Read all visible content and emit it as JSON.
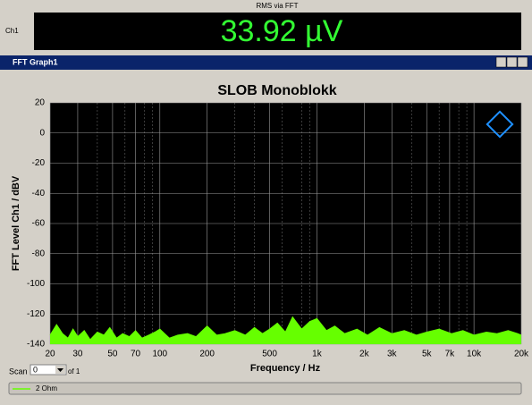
{
  "meter": {
    "title": "RMS via FFT",
    "channel": "Ch1",
    "reading": "33.92 µV"
  },
  "window": {
    "title": "FFT Graph1"
  },
  "scan": {
    "label": "Scan",
    "value": "0",
    "of": "of 1"
  },
  "chart_data": {
    "type": "line",
    "title": "SLOB Monoblokk",
    "x_label": "Frequency / Hz",
    "y_label": "FFT Level Ch1 / dBV",
    "x_log": true,
    "grid": true,
    "fill": true,
    "xlim": [
      20,
      20000
    ],
    "ylim": [
      -140,
      20
    ],
    "yticks": [
      -140,
      -120,
      -100,
      -80,
      -60,
      -40,
      -20,
      0,
      20
    ],
    "xticks": [
      20,
      30,
      50,
      70,
      100,
      200,
      500,
      {
        "value": 1000,
        "label": "1k"
      },
      {
        "value": 2000,
        "label": "2k"
      },
      {
        "value": 3000,
        "label": "3k"
      },
      {
        "value": 5000,
        "label": "5k"
      },
      {
        "value": 7000,
        "label": "7k"
      },
      {
        "value": 10000,
        "label": "10k"
      },
      {
        "value": 20000,
        "label": "20k"
      }
    ],
    "x_minor_ticks": [
      40,
      60,
      80,
      90,
      300,
      400,
      600,
      800,
      900,
      4000,
      6000,
      8000,
      9000
    ],
    "x": [
      20,
      22,
      24,
      26,
      28,
      30,
      33,
      36,
      40,
      44,
      48,
      53,
      58,
      64,
      70,
      77,
      85,
      93,
      100,
      115,
      130,
      150,
      170,
      200,
      230,
      260,
      300,
      350,
      400,
      450,
      500,
      560,
      630,
      700,
      800,
      900,
      1000,
      1150,
      1300,
      1500,
      1800,
      2100,
      2500,
      3000,
      3600,
      4300,
      5000,
      6000,
      7200,
      8500,
      10000,
      12000,
      14000,
      16500,
      19000,
      20000
    ],
    "series": [
      {
        "name": "2 Ohm",
        "color": "#66ff00",
        "values": [
          -134,
          -127,
          -133,
          -136,
          -130,
          -135,
          -131,
          -137,
          -132,
          -134,
          -129,
          -136,
          -133,
          -135,
          -131,
          -136,
          -134,
          -132,
          -130,
          -136,
          -134,
          -133,
          -135,
          -128,
          -134,
          -133,
          -131,
          -134,
          -129,
          -133,
          -130,
          -126,
          -132,
          -122,
          -130,
          -125,
          -123,
          -131,
          -128,
          -133,
          -130,
          -134,
          -129,
          -133,
          -131,
          -134,
          -132,
          -130,
          -133,
          -131,
          -134,
          -132,
          -133,
          -131,
          -133,
          -134
        ]
      }
    ]
  }
}
